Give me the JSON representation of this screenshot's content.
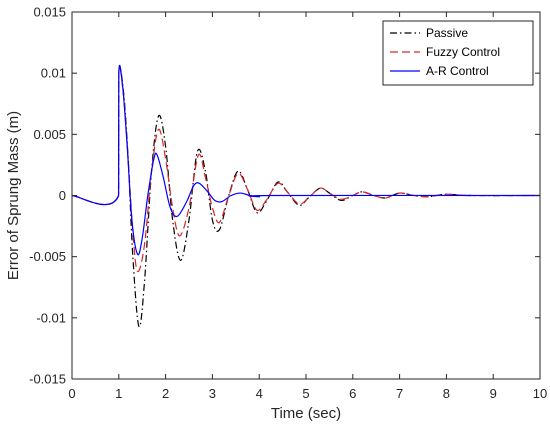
{
  "chart_data": {
    "type": "line",
    "xlabel": "Time (sec)",
    "ylabel": "Error of Sprung Mass (m)",
    "xlim": [
      0,
      10
    ],
    "ylim": [
      -0.015,
      0.015
    ],
    "xticks": [
      0,
      1,
      2,
      3,
      4,
      5,
      6,
      7,
      8,
      9,
      10
    ],
    "xtick_labels": [
      "0",
      "1",
      "2",
      "3",
      "4",
      "5",
      "6",
      "7",
      "8",
      "9",
      "10"
    ],
    "yticks": [
      -0.015,
      -0.01,
      -0.005,
      0,
      0.005,
      0.01,
      0.015
    ],
    "ytick_labels": [
      "-0.015",
      "-0.01",
      "-0.005",
      "0",
      "0.005",
      "0.01",
      "0.015"
    ],
    "grid": false,
    "legend_position": "top-right",
    "series": [
      {
        "name": "Passive",
        "color": "#000000",
        "dash": "dash-dot",
        "points": [
          [
            0,
            0
          ],
          [
            0.995,
            0
          ],
          [
            1.0,
            0.01
          ],
          [
            1.1,
            0.0085
          ],
          [
            1.2,
            0.003
          ],
          [
            1.3,
            -0.005
          ],
          [
            1.43,
            -0.0107
          ],
          [
            1.55,
            -0.007
          ],
          [
            1.7,
            0.002
          ],
          [
            1.85,
            0.0065
          ],
          [
            2.0,
            0.004
          ],
          [
            2.15,
            -0.002
          ],
          [
            2.32,
            -0.0053
          ],
          [
            2.5,
            -0.002
          ],
          [
            2.68,
            0.0036
          ],
          [
            2.85,
            0.002
          ],
          [
            3.0,
            -0.002
          ],
          [
            3.15,
            -0.0028
          ],
          [
            3.35,
            0.0
          ],
          [
            3.55,
            0.002
          ],
          [
            3.75,
            0.0005
          ],
          [
            3.95,
            -0.0014
          ],
          [
            4.15,
            -0.0005
          ],
          [
            4.4,
            0.0011
          ],
          [
            4.6,
            0.0003
          ],
          [
            4.85,
            -0.0008
          ],
          [
            5.05,
            -0.0002
          ],
          [
            5.3,
            0.0006
          ],
          [
            5.5,
            0.0002
          ],
          [
            5.75,
            -0.0004
          ],
          [
            6.0,
            0.0
          ],
          [
            6.2,
            0.0003
          ],
          [
            6.45,
            0.0
          ],
          [
            6.7,
            -0.0002
          ],
          [
            7.0,
            0.0002
          ],
          [
            7.3,
            0.0
          ],
          [
            7.6,
            -0.0001
          ],
          [
            8.0,
            0.0001
          ],
          [
            8.5,
            0.0
          ],
          [
            10,
            0
          ]
        ]
      },
      {
        "name": "Fuzzy Control",
        "color": "#d62728",
        "dash": "dashed",
        "points": [
          [
            0,
            0
          ],
          [
            0.995,
            0
          ],
          [
            1.0,
            0.01
          ],
          [
            1.1,
            0.0082
          ],
          [
            1.2,
            0.003
          ],
          [
            1.3,
            -0.003
          ],
          [
            1.4,
            -0.0062
          ],
          [
            1.55,
            -0.004
          ],
          [
            1.7,
            0.002
          ],
          [
            1.85,
            0.0054
          ],
          [
            2.0,
            0.003
          ],
          [
            2.15,
            -0.001
          ],
          [
            2.3,
            -0.0033
          ],
          [
            2.5,
            -0.001
          ],
          [
            2.7,
            0.0033
          ],
          [
            2.85,
            0.0015
          ],
          [
            3.0,
            -0.001
          ],
          [
            3.15,
            -0.0022
          ],
          [
            3.35,
            0.0
          ],
          [
            3.55,
            0.0018
          ],
          [
            3.75,
            0.0005
          ],
          [
            3.95,
            -0.0012
          ],
          [
            4.15,
            -0.0004
          ],
          [
            4.4,
            0.001
          ],
          [
            4.6,
            0.0003
          ],
          [
            4.85,
            -0.0007
          ],
          [
            5.05,
            -0.0002
          ],
          [
            5.3,
            0.0006
          ],
          [
            5.5,
            0.0002
          ],
          [
            5.75,
            -0.0003
          ],
          [
            6.0,
            0.0
          ],
          [
            6.2,
            0.0003
          ],
          [
            6.45,
            0.0
          ],
          [
            6.7,
            -0.0002
          ],
          [
            7.0,
            0.0002
          ],
          [
            7.3,
            0.0
          ],
          [
            7.6,
            -0.0001
          ],
          [
            8.0,
            0.0001
          ],
          [
            8.5,
            0.0
          ],
          [
            10,
            0
          ]
        ]
      },
      {
        "name": "A-R Control",
        "color": "#0000ff",
        "dash": "solid",
        "points": [
          [
            0,
            0
          ],
          [
            0.995,
            0
          ],
          [
            1.0,
            0.01
          ],
          [
            1.08,
            0.009
          ],
          [
            1.18,
            0.004
          ],
          [
            1.28,
            -0.002
          ],
          [
            1.4,
            -0.0048
          ],
          [
            1.5,
            -0.0035
          ],
          [
            1.62,
            0.0
          ],
          [
            1.75,
            0.003
          ],
          [
            1.82,
            0.0033
          ],
          [
            1.95,
            0.0015
          ],
          [
            2.1,
            -0.001
          ],
          [
            2.25,
            -0.0017
          ],
          [
            2.45,
            -0.0005
          ],
          [
            2.6,
            0.0008
          ],
          [
            2.72,
            0.001
          ],
          [
            2.9,
            0.0003
          ],
          [
            3.05,
            -0.0004
          ],
          [
            3.2,
            -0.0005
          ],
          [
            3.4,
            0.0
          ],
          [
            3.6,
            0.0002
          ],
          [
            3.8,
            0.0
          ],
          [
            4.0,
            -0.0001
          ],
          [
            4.3,
            0.0
          ],
          [
            10,
            0
          ]
        ]
      }
    ]
  }
}
